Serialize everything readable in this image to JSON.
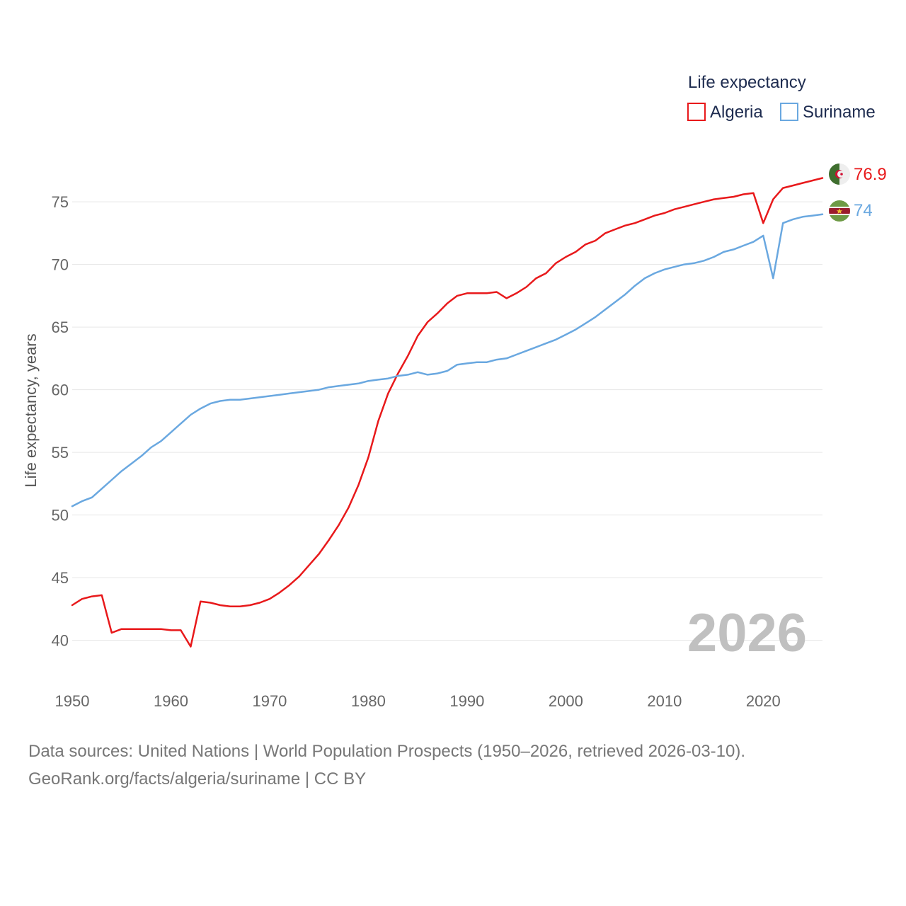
{
  "chart_data": {
    "type": "line",
    "legend_title": "Life expectancy",
    "ylabel": "Life expectancy, years",
    "xlabel": "",
    "xlim": [
      1950,
      2026
    ],
    "ylim": [
      38,
      78
    ],
    "x_ticks": [
      1950,
      1960,
      1970,
      1980,
      1990,
      2000,
      2010,
      2020
    ],
    "y_ticks": [
      40,
      45,
      50,
      55,
      60,
      65,
      70,
      75
    ],
    "grid": true,
    "legend_position": "top-right",
    "year_label": "2026",
    "x": [
      1950,
      1951,
      1952,
      1953,
      1954,
      1955,
      1956,
      1957,
      1958,
      1959,
      1960,
      1961,
      1962,
      1963,
      1964,
      1965,
      1966,
      1967,
      1968,
      1969,
      1970,
      1971,
      1972,
      1973,
      1974,
      1975,
      1976,
      1977,
      1978,
      1979,
      1980,
      1981,
      1982,
      1983,
      1984,
      1985,
      1986,
      1987,
      1988,
      1989,
      1990,
      1991,
      1992,
      1993,
      1994,
      1995,
      1996,
      1997,
      1998,
      1999,
      2000,
      2001,
      2002,
      2003,
      2004,
      2005,
      2006,
      2007,
      2008,
      2009,
      2010,
      2011,
      2012,
      2013,
      2014,
      2015,
      2016,
      2017,
      2018,
      2019,
      2020,
      2021,
      2022,
      2023,
      2024,
      2025,
      2026
    ],
    "series": [
      {
        "name": "Algeria",
        "color": "#e8191b",
        "end_label": "76.9",
        "flag_icon": "algeria-flag-icon",
        "values": [
          42.8,
          43.3,
          43.5,
          43.6,
          40.6,
          40.9,
          40.9,
          40.9,
          40.9,
          40.9,
          40.8,
          40.8,
          39.5,
          43.1,
          43.0,
          42.8,
          42.7,
          42.7,
          42.8,
          43.0,
          43.3,
          43.8,
          44.4,
          45.1,
          46.0,
          46.9,
          48.0,
          49.2,
          50.6,
          52.4,
          54.6,
          57.5,
          59.7,
          61.3,
          62.7,
          64.3,
          65.4,
          66.1,
          66.9,
          67.5,
          67.7,
          67.7,
          67.7,
          67.8,
          67.3,
          67.7,
          68.2,
          68.9,
          69.3,
          70.1,
          70.6,
          71.0,
          71.6,
          71.9,
          72.5,
          72.8,
          73.1,
          73.3,
          73.6,
          73.9,
          74.1,
          74.4,
          74.6,
          74.8,
          75.0,
          75.2,
          75.3,
          75.4,
          75.6,
          75.7,
          73.3,
          75.2,
          76.1,
          76.3,
          76.5,
          76.7,
          76.9
        ]
      },
      {
        "name": "Suriname",
        "color": "#6aa8e0",
        "end_label": "74",
        "flag_icon": "suriname-flag-icon",
        "values": [
          50.7,
          51.1,
          51.4,
          52.1,
          52.8,
          53.5,
          54.1,
          54.7,
          55.4,
          55.9,
          56.6,
          57.3,
          58.0,
          58.5,
          58.9,
          59.1,
          59.2,
          59.2,
          59.3,
          59.4,
          59.5,
          59.6,
          59.7,
          59.8,
          59.9,
          60.0,
          60.2,
          60.3,
          60.4,
          60.5,
          60.7,
          60.8,
          60.9,
          61.1,
          61.2,
          61.4,
          61.2,
          61.3,
          61.5,
          62.0,
          62.1,
          62.2,
          62.2,
          62.4,
          62.5,
          62.8,
          63.1,
          63.4,
          63.7,
          64.0,
          64.4,
          64.8,
          65.3,
          65.8,
          66.4,
          67.0,
          67.6,
          68.3,
          68.9,
          69.3,
          69.6,
          69.8,
          70.0,
          70.1,
          70.3,
          70.6,
          71.0,
          71.2,
          71.5,
          71.8,
          72.3,
          68.9,
          73.3,
          73.6,
          73.8,
          73.9,
          74.0
        ]
      }
    ]
  },
  "source": {
    "line1": "Data sources: United Nations | World Population Prospects (1950–2026, retrieved 2026-03-10).",
    "line2": "GeoRank.org/facts/algeria/suriname | CC BY"
  }
}
